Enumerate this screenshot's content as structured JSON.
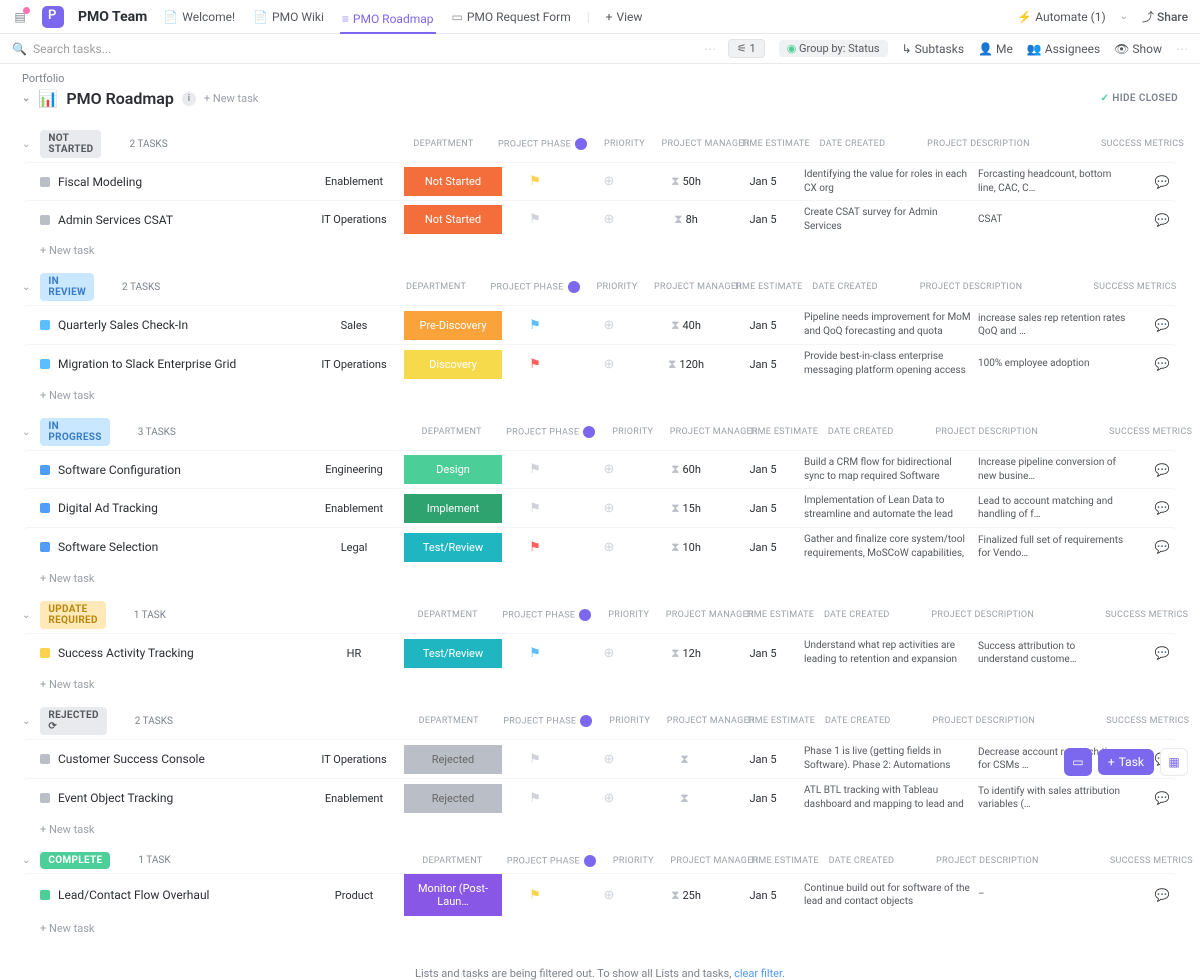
{
  "header": {
    "team_name": "PMO Team",
    "tabs": [
      {
        "label": "Welcome!"
      },
      {
        "label": "PMO Wiki"
      },
      {
        "label": "PMO Roadmap",
        "active": true
      },
      {
        "label": "PMO Request Form"
      }
    ],
    "view_btn": "View",
    "automate": "Automate (1)",
    "share": "Share"
  },
  "toolbar": {
    "search_placeholder": "Search tasks...",
    "filter_count": "1",
    "group_by": "Group by: Status",
    "subtasks": "Subtasks",
    "me": "Me",
    "assignees": "Assignees",
    "show": "Show"
  },
  "breadcrumb": "Portfolio",
  "page_title": "PMO Roadmap",
  "page_emoji": "📊",
  "new_item_link": "+ New task",
  "hide_closed": "HIDE CLOSED",
  "columns": {
    "department": "DEPARTMENT",
    "phase": "PROJECT PHASE",
    "priority": "PRIORITY",
    "pm": "PROJECT MANAGER",
    "est": "TIME ESTIMATE",
    "created": "DATE CREATED",
    "pdesc": "PROJECT DESCRIPTION",
    "metrics": "SUCCESS METRICS",
    "comments": "COMMENTS"
  },
  "new_task": "+ New task",
  "filtered_msg": "Lists and tasks are being filtered out. To show all Lists and tasks, ",
  "filtered_link": "clear filter",
  "task_btn": "Task",
  "phase_colors": {
    "NotStarted": "#f46e3c",
    "PreDiscovery": "#f9a33a",
    "Discovery": "#f7d94c",
    "Design": "#4bce97",
    "Implement": "#2ea36f",
    "TestReview": "#1fb6c1",
    "Rejected": "#b9bec7",
    "Monitor": "#8957e5"
  },
  "status_colors": {
    "NOT STARTED": "#e8eaed",
    "IN REVIEW": "#c9e8ff",
    "IN PROGRESS": "#c9e8ff",
    "UPDATE REQUIRED": "#ffe9b8",
    "REJECTED": "#e8eaed",
    "COMPLETE": "#4bce97"
  },
  "status_text_colors": {
    "NOT STARTED": "#54585e",
    "IN REVIEW": "#3a7bc8",
    "IN PROGRESS": "#3a7bc8",
    "UPDATE REQUIRED": "#b8860b",
    "REJECTED": "#54585e",
    "COMPLETE": "#ffffff"
  },
  "groups": [
    {
      "status": "NOT STARTED",
      "count": "2 TASKS",
      "sq_color": "#b9bec7",
      "tasks": [
        {
          "name": "Fiscal Modeling",
          "dept": "Enablement",
          "phase": "Not Started",
          "phase_key": "NotStarted",
          "flag": "#ffd24d",
          "est": "50h",
          "created": "Jan 5",
          "desc": "Identifying the value for roles in each CX org",
          "metrics": "Forcasting headcount, bottom line, CAC, C…"
        },
        {
          "name": "Admin Services CSAT",
          "dept": "IT Operations",
          "phase": "Not Started",
          "phase_key": "NotStarted",
          "flag": "#cfd3d9",
          "est": "8h",
          "created": "Jan 5",
          "desc": "Create CSAT survey for Admin Services",
          "metrics": "CSAT"
        }
      ]
    },
    {
      "status": "IN REVIEW",
      "count": "2 TASKS",
      "sq_color": "#5bbfff",
      "tasks": [
        {
          "name": "Quarterly Sales Check-In",
          "dept": "Sales",
          "phase": "Pre-Discovery",
          "phase_key": "PreDiscovery",
          "flag": "#5bbfff",
          "est": "40h",
          "created": "Jan 5",
          "desc": "Pipeline needs improvement for MoM and QoQ forecasting and quota attainment.  SPIFF mgmt process…",
          "metrics": "increase sales rep retention rates QoQ and …"
        },
        {
          "name": "Migration to Slack Enterprise Grid",
          "dept": "IT Operations",
          "phase": "Discovery",
          "phase_key": "Discovery",
          "flag": "#ff5f5f",
          "est": "120h",
          "created": "Jan 5",
          "desc": "Provide best-in-class enterprise messaging platform opening access to a controlled a multi-instance env…",
          "metrics": "100% employee adoption"
        }
      ]
    },
    {
      "status": "IN PROGRESS",
      "count": "3 TASKS",
      "sq_color": "#4f9cf9",
      "tasks": [
        {
          "name": "Software Configuration",
          "dept": "Engineering",
          "phase": "Design",
          "phase_key": "Design",
          "flag": "#cfd3d9",
          "est": "60h",
          "created": "Jan 5",
          "desc": "Build a CRM flow for bidirectional sync to map required Software",
          "metrics": "Increase pipeline conversion of new busine…"
        },
        {
          "name": "Digital Ad Tracking",
          "dept": "Enablement",
          "phase": "Implement",
          "phase_key": "Implement",
          "flag": "#cfd3d9",
          "est": "15h",
          "created": "Jan 5",
          "desc": "Implementation of Lean Data to streamline and automate the lead routing capabilities.",
          "metrics": "Lead to account matching and handling of f…"
        },
        {
          "name": "Software Selection",
          "dept": "Legal",
          "phase": "Test/Review",
          "phase_key": "TestReview",
          "flag": "#ff5f5f",
          "est": "10h",
          "created": "Jan 5",
          "desc": "Gather and finalize core system/tool requirements, MoSCoW capabilities, and acceptance criteria for C…",
          "metrics": "Finalized full set of requirements for Vendo…"
        }
      ]
    },
    {
      "status": "UPDATE REQUIRED",
      "count": "1 TASK",
      "sq_color": "#ffd24d",
      "tasks": [
        {
          "name": "Success Activity Tracking",
          "dept": "HR",
          "phase": "Test/Review",
          "phase_key": "TestReview",
          "flag": "#5bbfff",
          "est": "12h",
          "created": "Jan 5",
          "desc": "Understand what rep activities are leading to retention and expansion within their book of accounts.",
          "metrics": "Success attribution to understand custome…"
        }
      ]
    },
    {
      "status": "REJECTED",
      "count": "2 TASKS",
      "sq_color": "#b9bec7",
      "extra_icon": true,
      "tasks": [
        {
          "name": "Customer Success Console",
          "dept": "IT Operations",
          "phase": "Rejected",
          "phase_key": "Rejected",
          "flag": "#cfd3d9",
          "est": "",
          "created": "Jan 5",
          "desc": "Phase 1 is live (getting fields in Software).  Phase 2: Automations requirements gathering vs. vendor pur…",
          "metrics": "Decrease account research time for CSMs …"
        },
        {
          "name": "Event Object Tracking",
          "dept": "Enablement",
          "phase": "Rejected",
          "phase_key": "Rejected",
          "flag": "#cfd3d9",
          "est": "",
          "created": "Jan 5",
          "desc": "ATL BTL tracking with Tableau dashboard and mapping to lead and contact objects",
          "metrics": "To identify with sales attribution variables (…"
        }
      ]
    },
    {
      "status": "COMPLETE",
      "count": "1 TASK",
      "sq_color": "#4bce97",
      "tasks": [
        {
          "name": "Lead/Contact Flow Overhaul",
          "dept": "Product",
          "phase": "Monitor (Post-Laun…",
          "phase_key": "Monitor",
          "flag": "#ffd24d",
          "est": "25h",
          "created": "Jan 5",
          "desc": "Continue build out for software of the lead and contact objects",
          "metrics": "–"
        }
      ]
    }
  ]
}
